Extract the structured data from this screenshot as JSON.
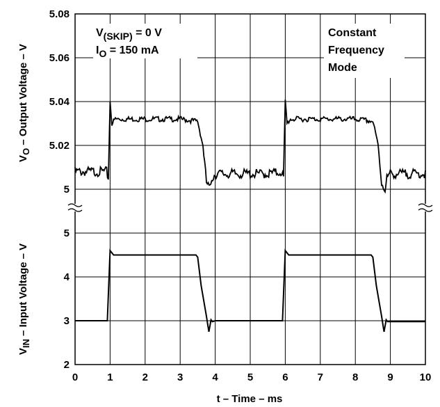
{
  "chart_data": [
    {
      "panel": "top",
      "type": "line",
      "ylabel_main": "V",
      "ylabel_sub": "O",
      "ylabel_rest": " – Output Voltage – V",
      "ylim": [
        5.0,
        5.08
      ],
      "yticks": [
        "5.08",
        "5.06",
        "5.04",
        "5.02",
        "5"
      ],
      "annotation_left": {
        "line1_main": "V",
        "line1_sub": "(SKIP)",
        "line1_rest": " = 0 V",
        "line2_main": "I",
        "line2_sub": "O",
        "line2_rest": " = 150 mA"
      },
      "annotation_right": [
        "Constant",
        "Frequency",
        "Mode"
      ],
      "series": [
        {
          "x": [
            0,
            0.9,
            0.95,
            1.0,
            1.05,
            1.15,
            1.5,
            2.0,
            2.5,
            3.0,
            3.5,
            3.65,
            3.75,
            3.85,
            3.9,
            4.0,
            4.5,
            5.0,
            5.5,
            5.9,
            5.95,
            6.0,
            6.05,
            6.15,
            6.5,
            7.0,
            7.5,
            8.0,
            8.5,
            8.65,
            8.75,
            8.85,
            8.9,
            9.0,
            9.5,
            10.0
          ],
          "y": [
            5.008,
            5.008,
            5.005,
            5.04,
            5.03,
            5.032,
            5.032,
            5.032,
            5.032,
            5.032,
            5.031,
            5.02,
            5.003,
            5.0,
            5.005,
            5.007,
            5.007,
            5.007,
            5.007,
            5.008,
            5.005,
            5.04,
            5.03,
            5.032,
            5.032,
            5.032,
            5.032,
            5.032,
            5.031,
            5.02,
            5.003,
            5.0,
            5.005,
            5.007,
            5.007,
            5.007
          ]
        }
      ]
    },
    {
      "panel": "bottom",
      "type": "line",
      "ylabel_main": "V",
      "ylabel_sub": "IN",
      "ylabel_rest": "  – Input Voltage – V",
      "xlabel": "t – Time – ms",
      "xlim": [
        0,
        10
      ],
      "xticks": [
        "0",
        "1",
        "2",
        "3",
        "4",
        "5",
        "6",
        "7",
        "8",
        "9",
        "10"
      ],
      "ylim": [
        2,
        5
      ],
      "yticks": [
        "5",
        "4",
        "3",
        "2"
      ],
      "series": [
        {
          "x": [
            0,
            0.92,
            0.97,
            1.0,
            1.05,
            1.1,
            1.5,
            2.0,
            2.5,
            3.0,
            3.45,
            3.5,
            3.6,
            3.75,
            3.82,
            3.88,
            3.92,
            4.0,
            4.5,
            5.0,
            5.5,
            5.92,
            5.97,
            6.0,
            6.05,
            6.1,
            6.5,
            7.0,
            7.5,
            8.0,
            8.45,
            8.5,
            8.6,
            8.75,
            8.82,
            8.88,
            8.92,
            9.0,
            9.5,
            10.0
          ],
          "y": [
            3.0,
            3.0,
            4.0,
            4.6,
            4.55,
            4.5,
            4.5,
            4.5,
            4.5,
            4.5,
            4.5,
            4.45,
            3.8,
            3.1,
            2.75,
            3.02,
            2.98,
            3.0,
            3.0,
            3.0,
            3.0,
            3.0,
            4.0,
            4.6,
            4.55,
            4.5,
            4.5,
            4.5,
            4.5,
            4.5,
            4.5,
            4.45,
            3.8,
            3.1,
            2.75,
            3.02,
            2.98,
            2.98,
            2.98,
            2.98
          ]
        }
      ]
    }
  ]
}
